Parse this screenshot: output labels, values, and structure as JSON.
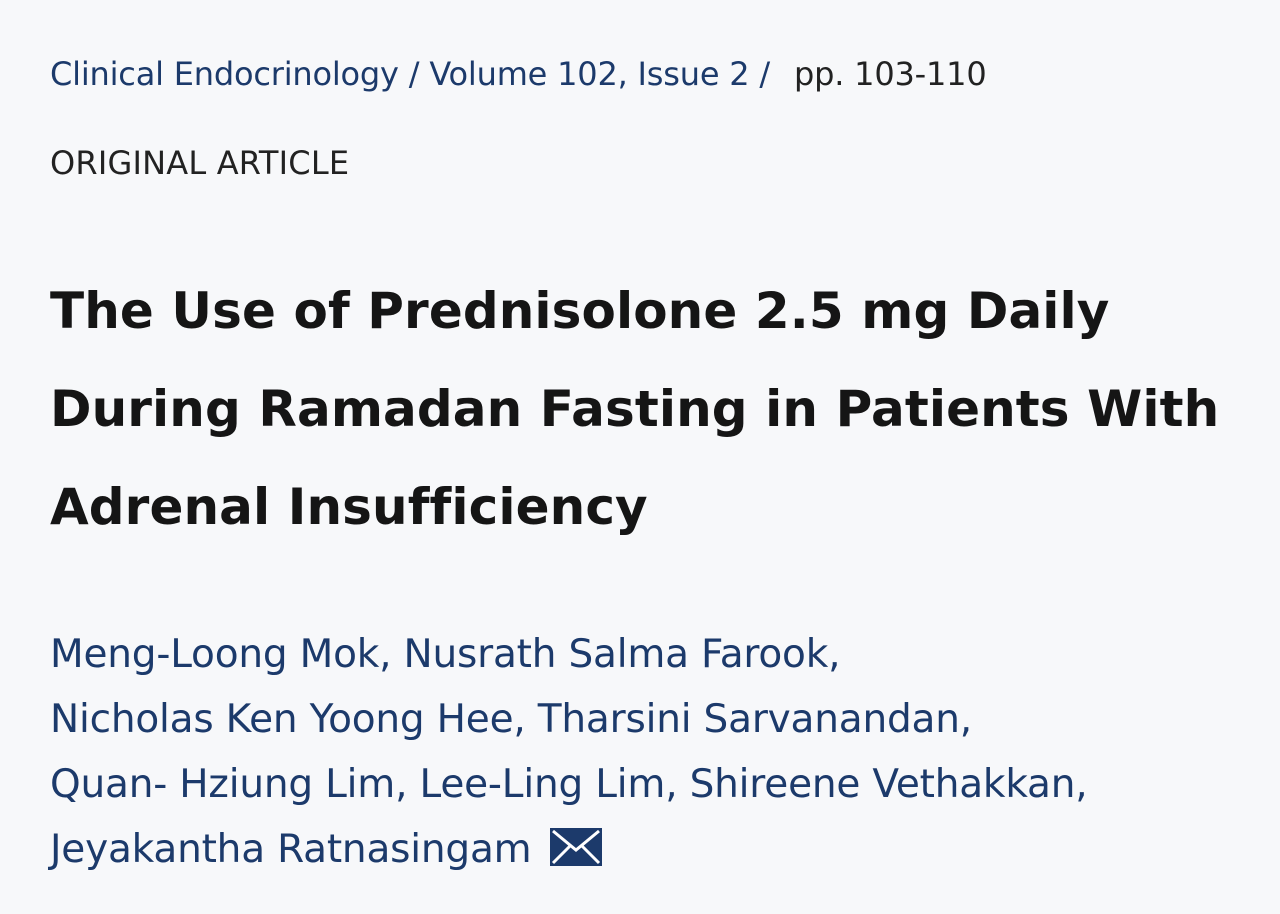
{
  "breadcrumb": {
    "journal": "Clinical Endocrinology",
    "separator": "/",
    "volume_issue": "Volume 102, Issue 2",
    "pages": "pp. 103-110"
  },
  "article": {
    "type": "ORIGINAL ARTICLE",
    "title_lines": [
      "The Use of Prednisolone 2.5 mg Daily",
      "During Ramadan Fasting in Patients With",
      "Adrenal Insufficiency"
    ]
  },
  "authors": [
    "Meng-Loong Mok",
    "Nusrath Salma Farook",
    "Nicholas Ken Yoong Hee",
    "Tharsini Sarvanandan",
    "Quan- Hziung Lim",
    "Lee-Ling Lim",
    "Shireene Vethakkan",
    "Jeyakantha Ratnasingam"
  ],
  "author_separator": ",",
  "corresponding_icon": "mail-icon",
  "colors": {
    "link": "#1c3a6b",
    "text": "#222222",
    "title": "#151515",
    "background": "#f7f8fa"
  }
}
